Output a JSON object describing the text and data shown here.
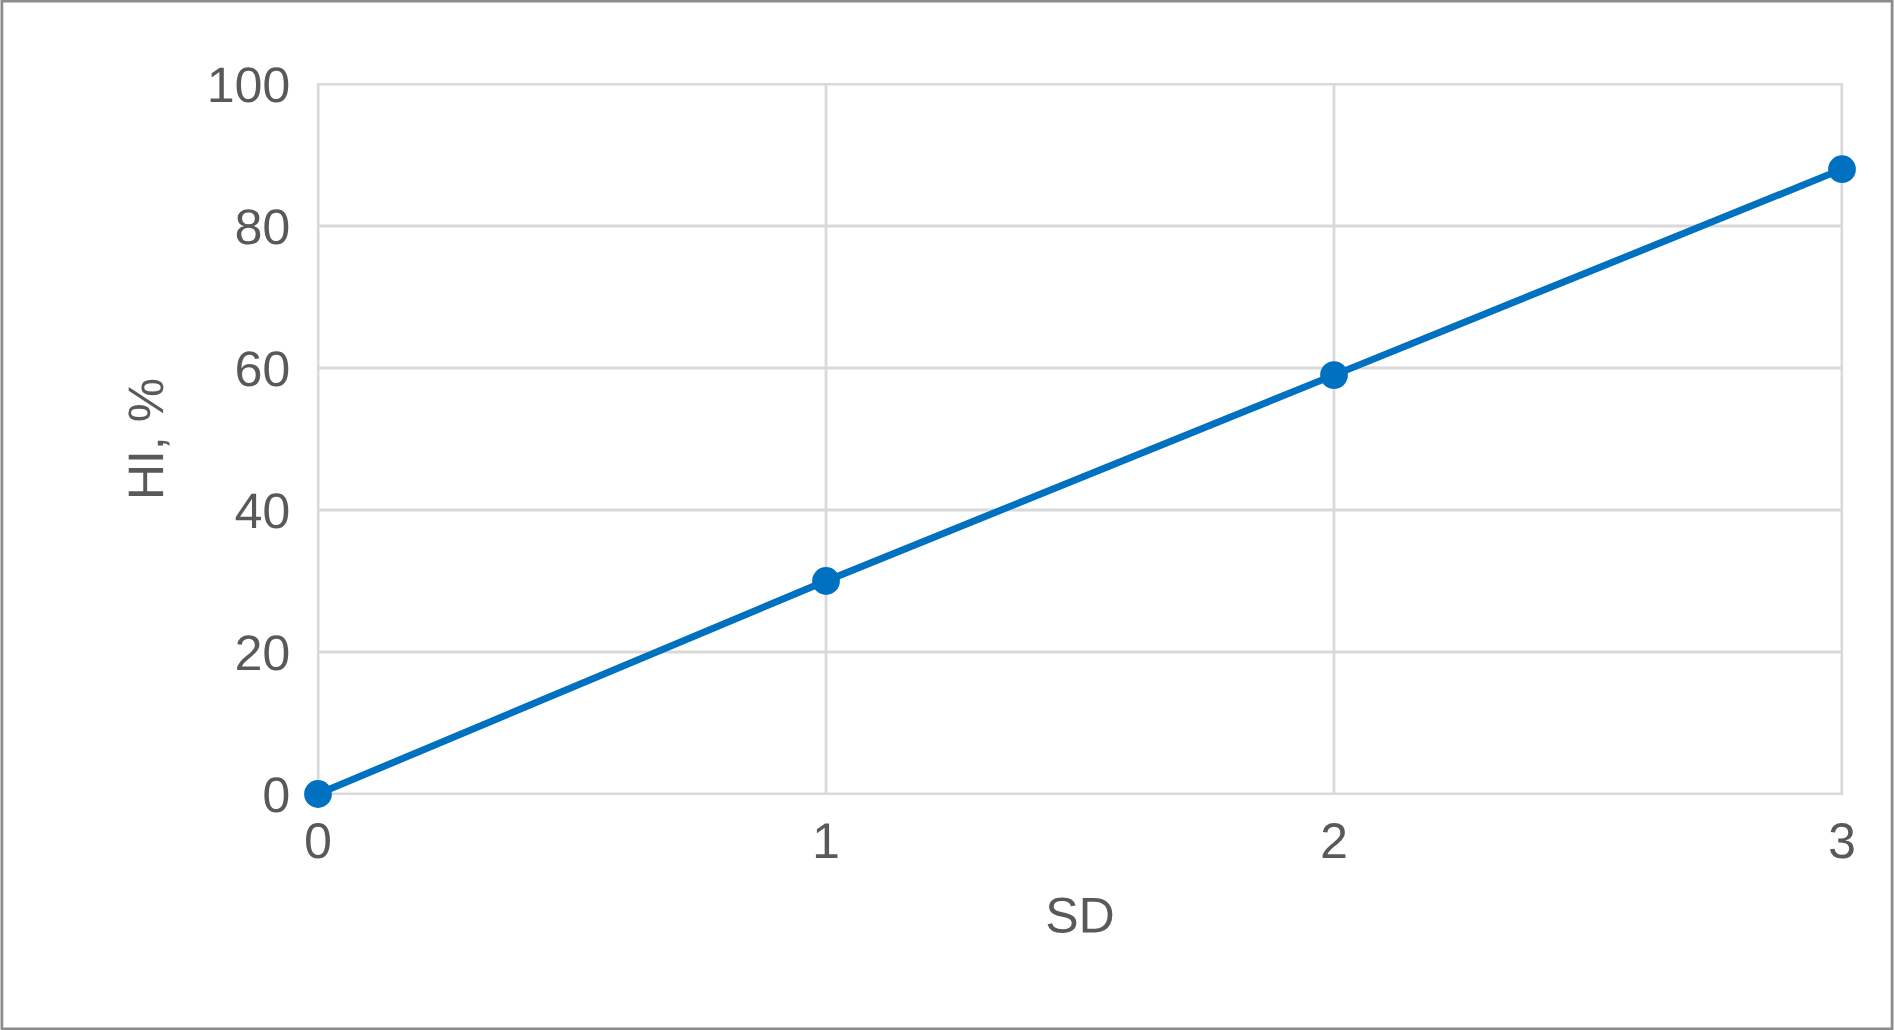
{
  "chart_data": {
    "type": "line",
    "xlabel": "SD",
    "ylabel": "HI, %",
    "x": [
      0,
      1,
      2,
      3
    ],
    "series": [
      {
        "color": "#0070c0",
        "values": [
          0,
          30,
          59,
          88
        ]
      }
    ],
    "xlim": [
      0,
      3
    ],
    "xticks": [
      0,
      1,
      2,
      3
    ],
    "ylim": [
      0,
      100
    ],
    "yticks": [
      0,
      20,
      40,
      60,
      80,
      100
    ],
    "grid": true,
    "marker": "circle",
    "line_style": "solid"
  }
}
